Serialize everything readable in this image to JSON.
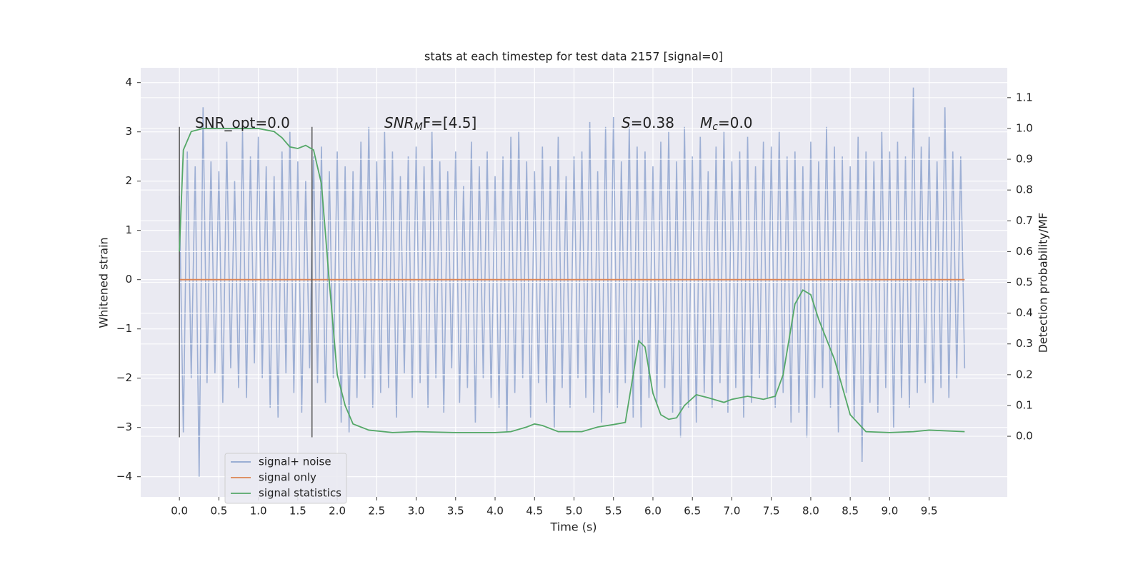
{
  "chart_data": {
    "type": "line",
    "title": "stats at each timestep for test data 2157 [signal=0]",
    "xlabel": "Time (s)",
    "ylabel": "Whitened strain",
    "y2label": "Detection probability/MF",
    "xlim": [
      -0.49,
      10.49
    ],
    "ylim": [
      -4.41,
      4.3
    ],
    "y2lim": [
      -0.197,
      1.197
    ],
    "xticks": [
      {
        "value": 0,
        "label": "0.0"
      },
      {
        "value": 0.5,
        "label": "0.5"
      },
      {
        "value": 1,
        "label": "1.0"
      },
      {
        "value": 1.5,
        "label": "1.5"
      },
      {
        "value": 2,
        "label": "2.0"
      },
      {
        "value": 2.5,
        "label": "2.5"
      },
      {
        "value": 3,
        "label": "3.0"
      },
      {
        "value": 3.5,
        "label": "3.5"
      },
      {
        "value": 4,
        "label": "4.0"
      },
      {
        "value": 4.5,
        "label": "4.5"
      },
      {
        "value": 5,
        "label": "5.0"
      },
      {
        "value": 5.5,
        "label": "5.5"
      },
      {
        "value": 6,
        "label": "6.0"
      },
      {
        "value": 6.5,
        "label": "6.5"
      },
      {
        "value": 7,
        "label": "7.0"
      },
      {
        "value": 7.5,
        "label": "7.5"
      },
      {
        "value": 8,
        "label": "8.0"
      },
      {
        "value": 8.5,
        "label": "8.5"
      },
      {
        "value": 9,
        "label": "9.0"
      },
      {
        "value": 9.5,
        "label": "9.5"
      }
    ],
    "yticks": [
      {
        "value": -4,
        "label": "−4"
      },
      {
        "value": -3,
        "label": "−3"
      },
      {
        "value": -2,
        "label": "−2"
      },
      {
        "value": -1,
        "label": "−1"
      },
      0,
      1,
      2,
      3,
      4
    ],
    "y2ticks": [
      {
        "value": 0,
        "label": "0.0"
      },
      {
        "value": 0.1,
        "label": "0.1"
      },
      {
        "value": 0.2,
        "label": "0.2"
      },
      {
        "value": 0.3,
        "label": "0.3"
      },
      {
        "value": 0.4,
        "label": "0.4"
      },
      {
        "value": 0.5,
        "label": "0.5"
      },
      {
        "value": 0.6,
        "label": "0.6"
      },
      {
        "value": 0.7,
        "label": "0.7"
      },
      {
        "value": 0.8,
        "label": "0.8"
      },
      {
        "value": 0.9,
        "label": "0.9"
      },
      {
        "value": 1,
        "label": "1.0"
      },
      {
        "value": 1.1,
        "label": "1.1"
      }
    ],
    "grid": true,
    "legend": "lower left",
    "series": [
      {
        "name": "signal+ noise",
        "color": "#8fa5cf",
        "x": [
          0,
          0.05,
          0.1,
          0.15,
          0.2,
          0.25,
          0.3,
          0.35,
          0.4,
          0.45,
          0.5,
          0.55,
          0.6,
          0.65,
          0.7,
          0.75,
          0.8,
          0.85,
          0.9,
          0.95,
          1,
          1.05,
          1.1,
          1.15,
          1.2,
          1.25,
          1.3,
          1.35,
          1.4,
          1.45,
          1.5,
          1.55,
          1.6,
          1.65,
          1.7,
          1.75,
          1.8,
          1.85,
          1.9,
          1.95,
          2,
          2.05,
          2.1,
          2.15,
          2.2,
          2.25,
          2.3,
          2.35,
          2.4,
          2.45,
          2.5,
          2.55,
          2.6,
          2.65,
          2.7,
          2.75,
          2.8,
          2.85,
          2.9,
          2.95,
          3,
          3.05,
          3.1,
          3.15,
          3.2,
          3.25,
          3.3,
          3.35,
          3.4,
          3.45,
          3.5,
          3.55,
          3.6,
          3.65,
          3.7,
          3.75,
          3.8,
          3.85,
          3.9,
          3.95,
          4,
          4.05,
          4.1,
          4.15,
          4.2,
          4.25,
          4.3,
          4.35,
          4.4,
          4.45,
          4.5,
          4.55,
          4.6,
          4.65,
          4.7,
          4.75,
          4.8,
          4.85,
          4.9,
          4.95,
          5,
          5.05,
          5.1,
          5.15,
          5.2,
          5.25,
          5.3,
          5.35,
          5.4,
          5.45,
          5.5,
          5.55,
          5.6,
          5.65,
          5.7,
          5.75,
          5.8,
          5.85,
          5.9,
          5.95,
          6,
          6.05,
          6.1,
          6.15,
          6.2,
          6.25,
          6.3,
          6.35,
          6.4,
          6.45,
          6.5,
          6.55,
          6.6,
          6.65,
          6.7,
          6.75,
          6.8,
          6.85,
          6.9,
          6.95,
          7,
          7.05,
          7.1,
          7.15,
          7.2,
          7.25,
          7.3,
          7.35,
          7.4,
          7.45,
          7.5,
          7.55,
          7.6,
          7.65,
          7.7,
          7.75,
          7.8,
          7.85,
          7.9,
          7.95,
          8,
          8.05,
          8.1,
          8.15,
          8.2,
          8.25,
          8.3,
          8.35,
          8.4,
          8.45,
          8.5,
          8.55,
          8.6,
          8.65,
          8.7,
          8.75,
          8.8,
          8.85,
          8.9,
          8.95,
          9,
          9.05,
          9.1,
          9.15,
          9.2,
          9.25,
          9.3,
          9.35,
          9.4,
          9.45,
          9.5,
          9.55,
          9.6,
          9.65,
          9.7,
          9.75,
          9.8,
          9.85,
          9.9,
          9.95
        ],
        "values": [
          1.7,
          -3.1,
          2.6,
          -2.0,
          2.3,
          -4.0,
          3.5,
          -2.1,
          2.4,
          -1.9,
          2.2,
          -2.5,
          2.8,
          -1.8,
          2.0,
          -2.2,
          3.0,
          -2.4,
          2.5,
          -1.7,
          2.9,
          -2.0,
          2.3,
          -2.6,
          2.1,
          -2.8,
          2.6,
          -1.9,
          3.0,
          -2.3,
          2.4,
          -2.7,
          2.0,
          -1.8,
          2.5,
          -2.1,
          2.7,
          -2.5,
          2.2,
          -2.0,
          2.6,
          -2.9,
          2.3,
          -3.1,
          2.2,
          -2.4,
          2.8,
          -2.0,
          3.1,
          -2.6,
          2.4,
          -2.3,
          3.0,
          -2.2,
          2.6,
          -2.8,
          2.1,
          -1.9,
          2.5,
          -2.4,
          2.7,
          -2.1,
          2.3,
          -2.6,
          3.0,
          -2.0,
          2.4,
          -2.7,
          2.2,
          -1.8,
          2.6,
          -2.5,
          1.9,
          -2.2,
          2.8,
          -2.9,
          2.3,
          -2.0,
          2.6,
          -2.4,
          2.1,
          -2.6,
          2.5,
          -3.1,
          2.9,
          -2.3,
          3.0,
          -2.0,
          2.4,
          -2.8,
          2.2,
          -2.1,
          2.7,
          -2.5,
          2.3,
          -3.0,
          2.9,
          -2.2,
          2.1,
          -2.6,
          2.5,
          -2.0,
          2.6,
          -2.4,
          3.2,
          -2.7,
          2.2,
          -2.9,
          3.1,
          -2.3,
          3.3,
          -2.6,
          2.4,
          -2.1,
          3.1,
          -2.8,
          2.7,
          -3.0,
          2.6,
          -2.4,
          2.3,
          -2.5,
          2.8,
          -2.2,
          3.0,
          -2.7,
          2.4,
          -3.2,
          3.1,
          -2.6,
          2.5,
          -2.9,
          2.9,
          -2.3,
          2.2,
          -2.6,
          2.7,
          -2.1,
          3.0,
          -2.7,
          2.4,
          -2.2,
          2.6,
          -2.8,
          2.9,
          -2.5,
          2.3,
          -2.0,
          2.8,
          -2.4,
          2.7,
          -2.6,
          3.0,
          -2.3,
          2.5,
          -2.9,
          2.6,
          -2.7,
          2.3,
          -3.2,
          2.8,
          -2.4,
          2.4,
          -2.2,
          3.1,
          -2.6,
          2.7,
          -3.1,
          2.5,
          -2.3,
          2.3,
          -2.8,
          2.9,
          -3.7,
          2.6,
          -2.5,
          2.4,
          -2.7,
          3.0,
          -2.2,
          2.6,
          -3.0,
          2.8,
          -2.4,
          2.5,
          -2.6,
          3.9,
          -2.3,
          2.7,
          -2.1,
          2.9,
          -2.5,
          2.4,
          -2.2,
          3.5,
          -2.4,
          2.6,
          -2.0,
          2.5,
          -1.8
        ]
      },
      {
        "name": "signal only",
        "color": "#dd8452",
        "x": [
          0,
          9.95
        ],
        "values": [
          0,
          0
        ]
      },
      {
        "name": "signal statistics",
        "color": "#55a868",
        "axis": "y2",
        "x": [
          0,
          0.05,
          0.15,
          0.3,
          0.5,
          1.0,
          1.2,
          1.3,
          1.4,
          1.5,
          1.6,
          1.7,
          1.8,
          1.9,
          2.0,
          2.1,
          2.2,
          2.4,
          2.7,
          3.0,
          3.5,
          4.0,
          4.2,
          4.4,
          4.5,
          4.6,
          4.8,
          5.1,
          5.3,
          5.5,
          5.65,
          5.75,
          5.82,
          5.9,
          6.0,
          6.1,
          6.2,
          6.3,
          6.4,
          6.55,
          6.7,
          6.9,
          7.0,
          7.2,
          7.4,
          7.55,
          7.65,
          7.8,
          7.9,
          8.0,
          8.1,
          8.3,
          8.5,
          8.7,
          9.0,
          9.3,
          9.5,
          9.95
        ],
        "values": [
          0.6,
          0.93,
          0.99,
          1.0,
          1.0,
          1.0,
          0.99,
          0.97,
          0.94,
          0.935,
          0.945,
          0.93,
          0.82,
          0.5,
          0.2,
          0.1,
          0.04,
          0.02,
          0.012,
          0.015,
          0.012,
          0.012,
          0.015,
          0.03,
          0.04,
          0.035,
          0.015,
          0.015,
          0.03,
          0.038,
          0.045,
          0.2,
          0.31,
          0.29,
          0.14,
          0.07,
          0.055,
          0.06,
          0.1,
          0.135,
          0.125,
          0.11,
          0.12,
          0.13,
          0.12,
          0.13,
          0.2,
          0.43,
          0.475,
          0.46,
          0.38,
          0.25,
          0.07,
          0.015,
          0.012,
          0.015,
          0.02,
          0.015
        ]
      }
    ],
    "vlines": {
      "x": [
        0,
        1.68
      ],
      "ymin": -3.2,
      "ymax": 3.1,
      "color": "#555555"
    },
    "annotations": [
      {
        "base": "SNR_opt=0.0"
      },
      {
        "base": "SNR",
        "sub": "M",
        "after": "F=[4.5]"
      },
      {
        "base": "S",
        "after": "=0.38"
      },
      {
        "base": "M",
        "sub": "c",
        "after": "=0.0"
      }
    ]
  }
}
